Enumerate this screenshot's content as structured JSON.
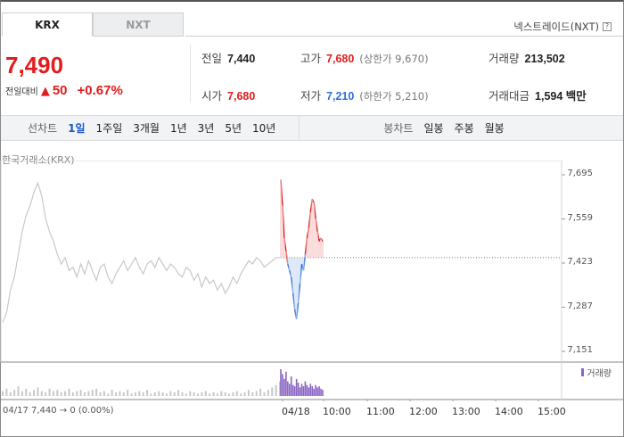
{
  "tabs": [
    {
      "label": "KRX",
      "active": true
    },
    {
      "label": "NXT",
      "active": false
    }
  ],
  "nxt_link": {
    "label": "넥스트레이드(NXT)",
    "help_icon": "?"
  },
  "price": {
    "current": "7,490",
    "change_label": "전일대비",
    "change_arrow": "▲",
    "change_value": "50",
    "change_percent": "+0.67%"
  },
  "quotes": {
    "prev_close": {
      "label": "전일",
      "value": "7,440"
    },
    "high": {
      "label": "고가",
      "value": "7,680",
      "sub": "(상한가 9,670)"
    },
    "volume": {
      "label": "거래량",
      "value": "213,502"
    },
    "open": {
      "label": "시가",
      "value": "7,680"
    },
    "low": {
      "label": "저가",
      "value": "7,210",
      "sub": "(하한가 5,210)"
    },
    "amount": {
      "label": "거래대금",
      "value": "1,594 백만"
    }
  },
  "toolbar": {
    "line_chart_label": "선차트",
    "periods": [
      "1일",
      "1주일",
      "3개월",
      "1년",
      "3년",
      "5년",
      "10년"
    ],
    "active_period": "1일",
    "candle_chart_label": "봉차트",
    "candle_periods": [
      "일봉",
      "주봉",
      "월봉"
    ]
  },
  "chart_title": "한국거래소(KRX)",
  "volume_legend": "거래량",
  "prev_day_info": "04/17   7,440 → 0 (0.00%)",
  "colors": {
    "up": "#e21c1c",
    "down": "#2f6fd6",
    "prev": "#c8c8c8",
    "volume": "#8a64c4",
    "volume_prev": "#c8c8c8"
  },
  "chart_data": {
    "type": "line",
    "title": "한국거래소(KRX)",
    "y_ticks": [
      7151,
      7287,
      7423,
      7559,
      7695
    ],
    "ylim": [
      7151,
      7695
    ],
    "x_tick_labels": [
      "04/18",
      "10:00",
      "11:00",
      "12:00",
      "13:00",
      "14:00",
      "15:00"
    ],
    "reference_line": 7440,
    "series": [
      {
        "key": "prev_day",
        "values": [
          7240,
          7270,
          7340,
          7380,
          7450,
          7520,
          7570,
          7600,
          7640,
          7670,
          7630,
          7560,
          7520,
          7490,
          7450,
          7420,
          7440,
          7400,
          7410,
          7380,
          7420,
          7390,
          7430,
          7400,
          7370,
          7410,
          7420,
          7380,
          7360,
          7390,
          7410,
          7430,
          7400,
          7420,
          7440,
          7410,
          7390,
          7420,
          7430,
          7410,
          7440,
          7420,
          7400,
          7420,
          7410,
          7390,
          7380,
          7410,
          7400,
          7370,
          7390,
          7350,
          7380,
          7360,
          7370,
          7340,
          7360,
          7330,
          7350,
          7380,
          7360,
          7390,
          7410,
          7430,
          7420,
          7440,
          7430,
          7410,
          7420,
          7430,
          7440,
          7440
        ]
      },
      {
        "key": "today",
        "values": [
          7680,
          7600,
          7500,
          7460,
          7420,
          7400,
          7380,
          7330,
          7280,
          7250,
          7300,
          7360,
          7420,
          7400,
          7450,
          7500,
          7530,
          7580,
          7620,
          7610,
          7560,
          7520,
          7490,
          7500,
          7490
        ]
      }
    ],
    "volume": {
      "prev_day": [
        4,
        6,
        3,
        5,
        8,
        4,
        6,
        3,
        5,
        7,
        4,
        3,
        6,
        4,
        5,
        3,
        4,
        6,
        3,
        4,
        5,
        3,
        4,
        5,
        6,
        3,
        4,
        2,
        5,
        3,
        4,
        3,
        5,
        2,
        3,
        4,
        3,
        5,
        2,
        3,
        4,
        3,
        2,
        4,
        3,
        5,
        3,
        2,
        4,
        3,
        2,
        3,
        4,
        2,
        3,
        2,
        4,
        3,
        2,
        3,
        4,
        2,
        3,
        5,
        3,
        4,
        6,
        3,
        5,
        7,
        9,
        12
      ],
      "today": [
        22,
        18,
        14,
        20,
        12,
        10,
        16,
        9,
        8,
        14,
        11,
        7,
        10,
        8,
        12,
        9,
        7,
        10,
        8,
        6,
        9,
        7,
        8,
        6,
        5
      ]
    }
  }
}
